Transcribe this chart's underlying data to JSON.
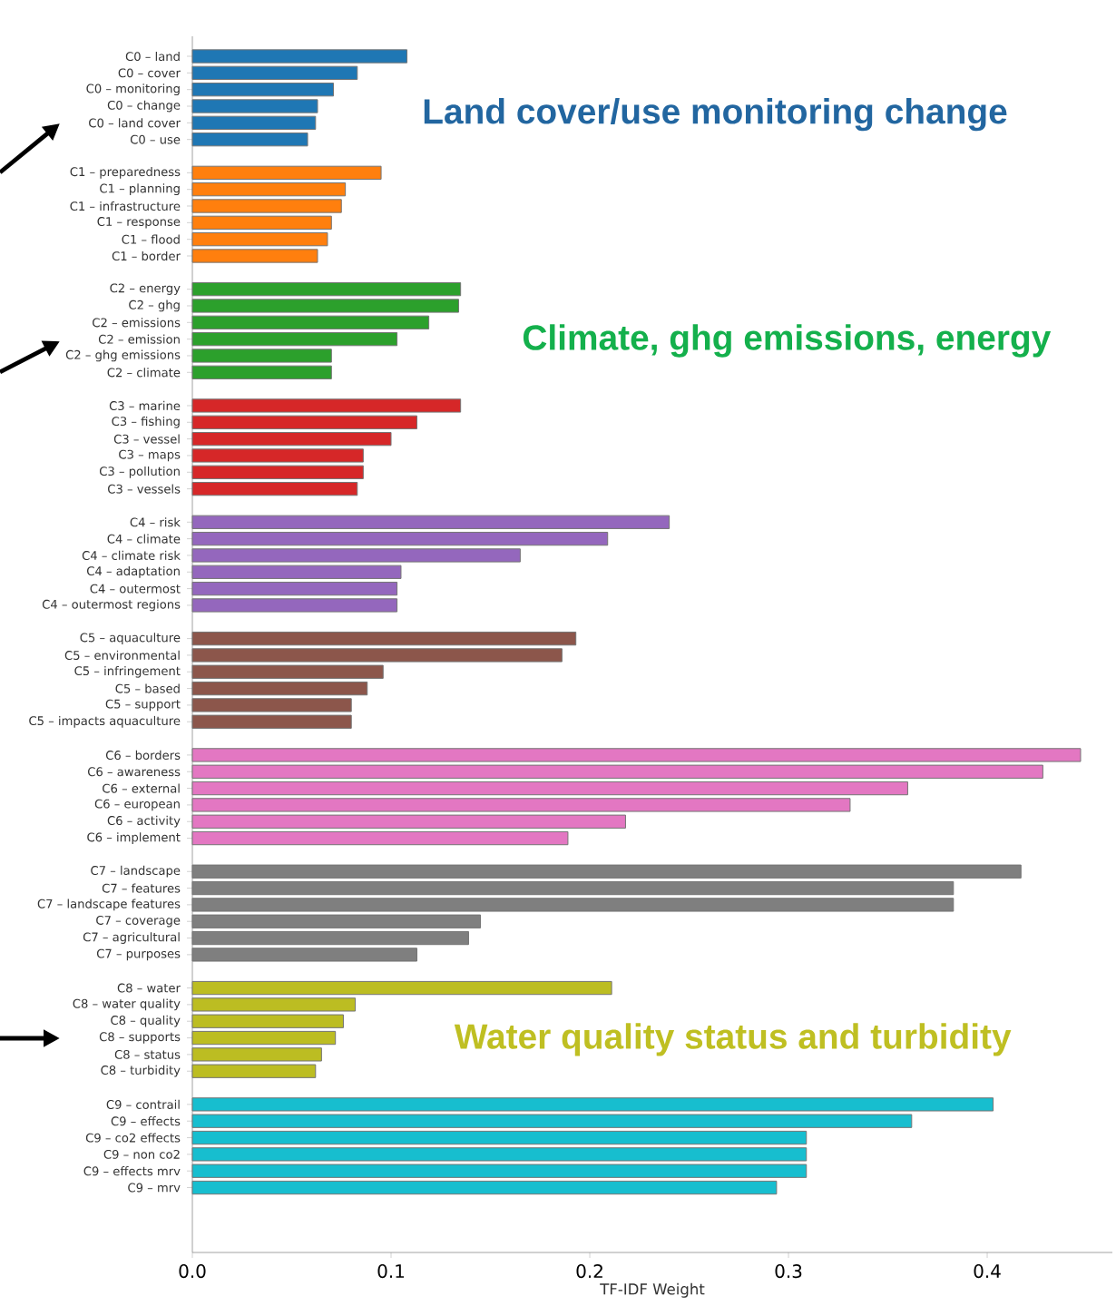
{
  "chart_data": {
    "type": "bar",
    "orientation": "horizontal",
    "xlabel": "TF-IDF Weight",
    "categories": [
      "C0 – land",
      "C0 – cover",
      "C0 – monitoring",
      "C0 – change",
      "C0 – land cover",
      "C0 – use",
      null,
      "C1 – preparedness",
      "C1 – planning",
      "C1 – infrastructure",
      "C1 – response",
      "C1 – flood",
      "C1 – border",
      null,
      "C2 – energy",
      "C2 – ghg",
      "C2 – emissions",
      "C2 – emission",
      "C2 – ghg emissions",
      "C2 – climate",
      null,
      "C3 – marine",
      "C3 – fishing",
      "C3 – vessel",
      "C3 – maps",
      "C3 – pollution",
      "C3 – vessels",
      null,
      "C4 – risk",
      "C4 – climate",
      "C4 – climate risk",
      "C4 – adaptation",
      "C4 – outermost",
      "C4 – outermost regions",
      null,
      "C5 – aquaculture",
      "C5 – environmental",
      "C5 – infringement",
      "C5 – based",
      "C5 – support",
      "C5 – impacts aquaculture",
      null,
      "C6 – borders",
      "C6 – awareness",
      "C6 – external",
      "C6 – european",
      "C6 – activity",
      "C6 – implement",
      null,
      "C7 – landscape",
      "C7 – features",
      "C7 – landscape features",
      "C7 – coverage",
      "C7 – agricultural",
      "C7 – purposes",
      null,
      "C8 – water",
      "C8 – water quality",
      "C8 – quality",
      "C8 – supports",
      "C8 – status",
      "C8 – turbidity",
      null,
      "C9 – contrail",
      "C9 – effects",
      "C9 – co2 effects",
      "C9 – non co2",
      "C9 – effects mrv",
      "C9 – mrv"
    ],
    "values": [
      0.108,
      0.083,
      0.071,
      0.063,
      0.062,
      0.058,
      null,
      0.095,
      0.077,
      0.075,
      0.07,
      0.068,
      0.063,
      null,
      0.135,
      0.134,
      0.119,
      0.103,
      0.07,
      0.07,
      null,
      0.135,
      0.113,
      0.1,
      0.086,
      0.086,
      0.083,
      null,
      0.24,
      0.209,
      0.165,
      0.105,
      0.103,
      0.103,
      null,
      0.193,
      0.186,
      0.096,
      0.088,
      0.08,
      0.08,
      null,
      0.447,
      0.428,
      0.36,
      0.331,
      0.218,
      0.189,
      null,
      0.417,
      0.383,
      0.383,
      0.145,
      0.139,
      0.113,
      null,
      0.211,
      0.082,
      0.076,
      0.072,
      0.065,
      0.062,
      null,
      0.403,
      0.362,
      0.309,
      0.309,
      0.309,
      0.294
    ],
    "colors": [
      "#1f77b4",
      "#1f77b4",
      "#1f77b4",
      "#1f77b4",
      "#1f77b4",
      "#1f77b4",
      null,
      "#ff7f0e",
      "#ff7f0e",
      "#ff7f0e",
      "#ff7f0e",
      "#ff7f0e",
      "#ff7f0e",
      null,
      "#2ca02c",
      "#2ca02c",
      "#2ca02c",
      "#2ca02c",
      "#2ca02c",
      "#2ca02c",
      null,
      "#d62728",
      "#d62728",
      "#d62728",
      "#d62728",
      "#d62728",
      "#d62728",
      null,
      "#9467bd",
      "#9467bd",
      "#9467bd",
      "#9467bd",
      "#9467bd",
      "#9467bd",
      null,
      "#8c564b",
      "#8c564b",
      "#8c564b",
      "#8c564b",
      "#8c564b",
      "#8c564b",
      null,
      "#e377c2",
      "#e377c2",
      "#e377c2",
      "#e377c2",
      "#e377c2",
      "#e377c2",
      null,
      "#7f7f7f",
      "#7f7f7f",
      "#7f7f7f",
      "#7f7f7f",
      "#7f7f7f",
      "#7f7f7f",
      null,
      "#bcbd22",
      "#bcbd22",
      "#bcbd22",
      "#bcbd22",
      "#bcbd22",
      "#bcbd22",
      null,
      "#17becf",
      "#17becf",
      "#17becf",
      "#17becf",
      "#17becf",
      "#17becf"
    ],
    "xlim": [
      0,
      0.463
    ],
    "xticks": [
      {
        "value": 0,
        "label": "0.0"
      },
      0.1,
      0.2,
      0.3,
      0.4
    ],
    "annotations": [
      "Land cover/use monitoring change",
      "Climate, ghg emissions, energy",
      "Water quality status and turbidity"
    ]
  }
}
